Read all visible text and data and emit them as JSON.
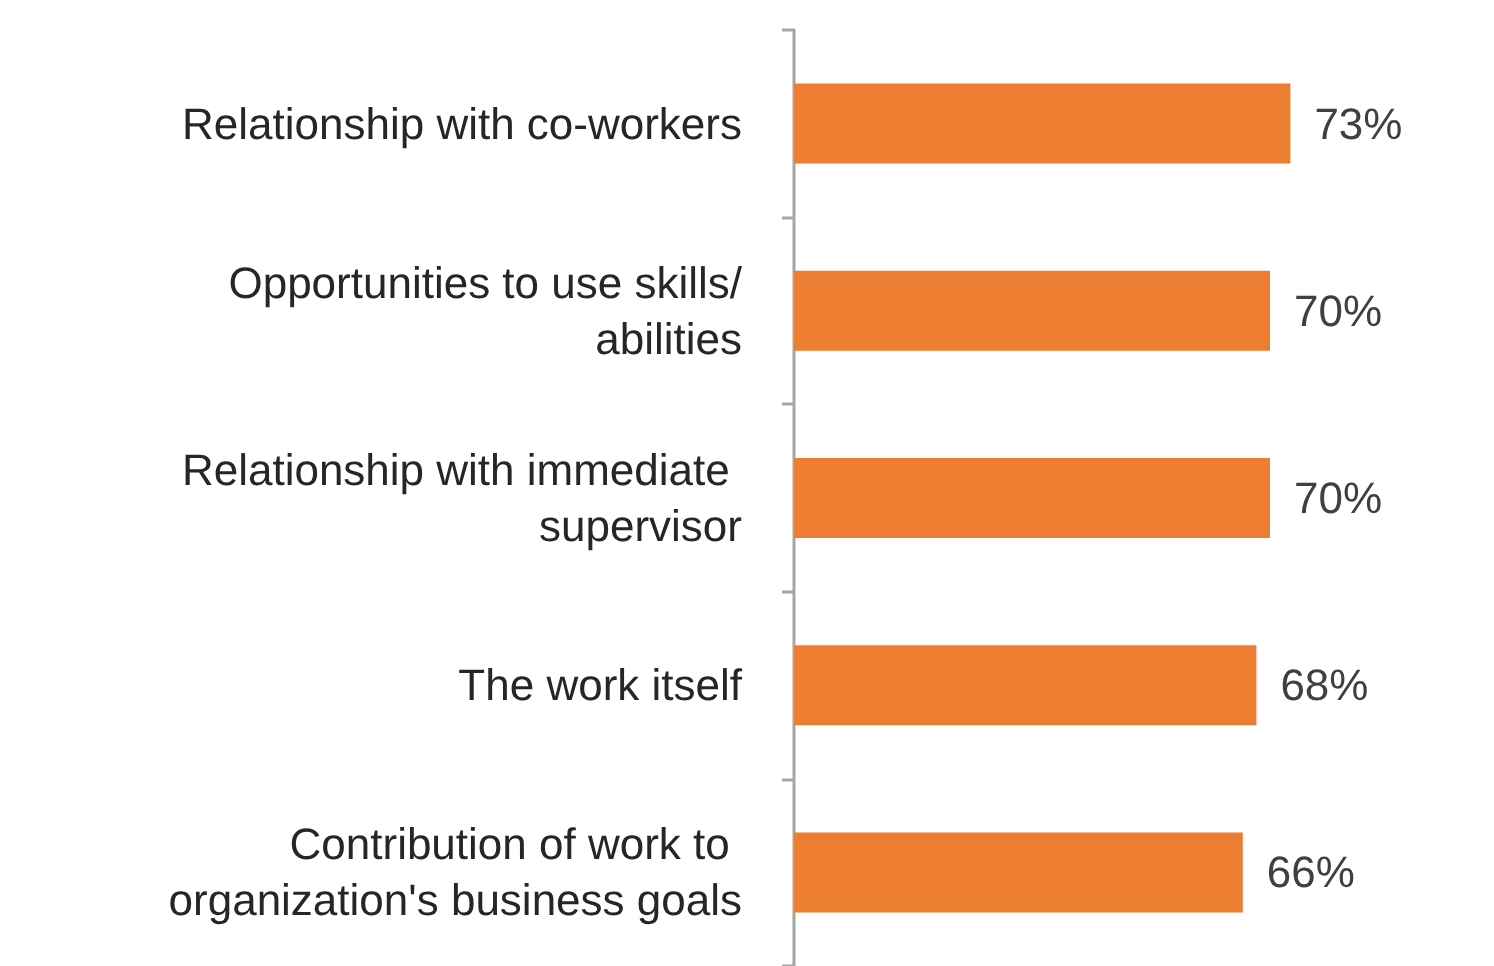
{
  "chart_data": {
    "type": "bar",
    "orientation": "horizontal",
    "categories": [
      "Relationship with co-workers",
      "Opportunities to use skills/abilities",
      "Relationship with immediate supervisor",
      "The work itself",
      "Contribution of work to organization's business goals"
    ],
    "values": [
      73,
      70,
      70,
      68,
      66
    ],
    "value_labels": [
      "73%",
      "70%",
      "70%",
      "68%",
      "66%"
    ],
    "color": "#ed7d31",
    "tick_labels": "y",
    "grid": false
  }
}
